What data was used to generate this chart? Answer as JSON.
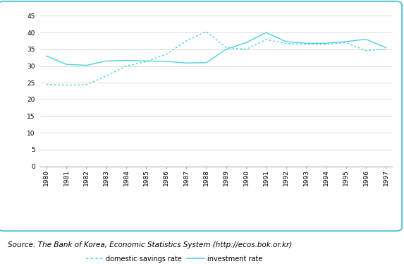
{
  "years": [
    1980,
    1981,
    1982,
    1983,
    1984,
    1985,
    1986,
    1987,
    1988,
    1989,
    1990,
    1991,
    1992,
    1993,
    1994,
    1995,
    1996,
    1997
  ],
  "domestic_savings_rate": [
    24.5,
    24.3,
    24.4,
    27.0,
    30.0,
    31.3,
    33.5,
    37.5,
    40.3,
    35.5,
    35.0,
    37.9,
    36.7,
    36.5,
    36.5,
    37.0,
    34.6,
    35.0
  ],
  "investment_rate": [
    33.0,
    30.5,
    30.2,
    31.5,
    31.7,
    31.5,
    31.4,
    30.9,
    31.0,
    35.0,
    37.0,
    40.0,
    37.3,
    36.8,
    36.8,
    37.3,
    38.0,
    35.5
  ],
  "line_color": "#4dd0e1",
  "savings_linestyle": "dotted",
  "investment_linestyle": "solid",
  "title": "",
  "xlabel": "",
  "ylabel": "",
  "ylim": [
    0,
    45
  ],
  "yticks": [
    0,
    5,
    10,
    15,
    20,
    25,
    30,
    35,
    40,
    45
  ],
  "legend_savings": "domestic savings rate",
  "legend_investment": "investment rate",
  "source_text": "Source: The Bank of Korea, Economic Statistics System (http://ecos.bok.or.kr)",
  "bg_color": "#ffffff",
  "border_color": "#5bc8d8",
  "grid_color": "#cccccc",
  "tick_fontsize": 6.5,
  "legend_fontsize": 7,
  "source_fontsize": 7.5
}
